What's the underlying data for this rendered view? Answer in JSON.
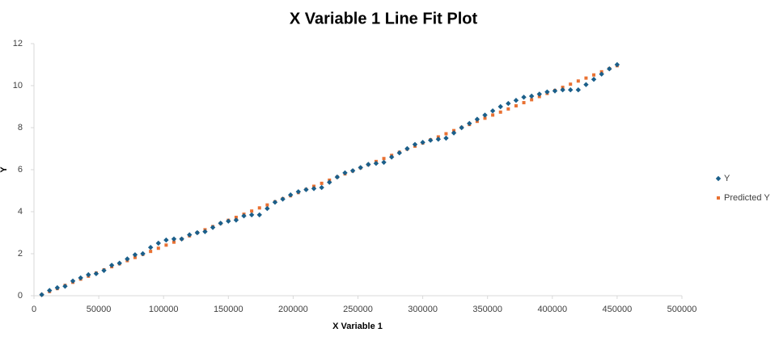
{
  "chart_data": {
    "type": "scatter",
    "title": "X Variable 1 Line Fit  Plot",
    "x_label": "X Variable 1",
    "y_label": "Y",
    "x": [
      6000,
      12000,
      18000,
      24000,
      30000,
      36000,
      42000,
      48000,
      54000,
      60000,
      66000,
      72000,
      78000,
      84000,
      90000,
      96000,
      102000,
      108000,
      114000,
      120000,
      126000,
      132000,
      138000,
      144000,
      150000,
      156000,
      162000,
      168000,
      174000,
      180000,
      186000,
      192000,
      198000,
      204000,
      210000,
      216000,
      222000,
      228000,
      234000,
      240000,
      246000,
      252000,
      258000,
      264000,
      270000,
      276000,
      282000,
      288000,
      294000,
      300000,
      306000,
      312000,
      318000,
      324000,
      330000,
      336000,
      342000,
      348000,
      354000,
      360000,
      366000,
      372000,
      378000,
      384000,
      390000,
      396000,
      402000,
      408000,
      414000,
      420000,
      426000,
      432000,
      438000,
      444000,
      450000
    ],
    "series": [
      {
        "name": "Y",
        "color": "#1b5f8a",
        "marker": "diamond",
        "values": [
          0.05,
          0.25,
          0.38,
          0.45,
          0.7,
          0.85,
          1.0,
          1.05,
          1.2,
          1.45,
          1.55,
          1.75,
          1.95,
          2.0,
          2.3,
          2.5,
          2.65,
          2.7,
          2.7,
          2.9,
          3.0,
          3.05,
          3.25,
          3.45,
          3.55,
          3.6,
          3.8,
          3.85,
          3.85,
          4.15,
          4.45,
          4.6,
          4.8,
          4.95,
          5.05,
          5.1,
          5.15,
          5.4,
          5.65,
          5.85,
          5.95,
          6.1,
          6.25,
          6.3,
          6.35,
          6.6,
          6.8,
          7.0,
          7.2,
          7.3,
          7.4,
          7.45,
          7.5,
          7.75,
          8.0,
          8.2,
          8.4,
          8.6,
          8.8,
          9.0,
          9.15,
          9.3,
          9.45,
          9.5,
          9.6,
          9.7,
          9.75,
          9.8,
          9.8,
          9.8,
          10.05,
          10.3,
          10.55,
          10.8,
          11.0
        ]
      },
      {
        "name": "Predicted Y",
        "color": "#e97132",
        "marker": "square",
        "values": [
          0.05,
          0.2,
          0.34,
          0.49,
          0.64,
          0.79,
          0.93,
          1.08,
          1.23,
          1.38,
          1.52,
          1.67,
          1.82,
          1.97,
          2.11,
          2.26,
          2.41,
          2.55,
          2.7,
          2.85,
          3.0,
          3.14,
          3.29,
          3.44,
          3.59,
          3.73,
          3.88,
          4.03,
          4.18,
          4.32,
          4.47,
          4.62,
          4.76,
          4.91,
          5.06,
          5.21,
          5.35,
          5.5,
          5.65,
          5.8,
          5.94,
          6.09,
          6.24,
          6.39,
          6.53,
          6.68,
          6.83,
          6.98,
          7.12,
          7.27,
          7.42,
          7.56,
          7.71,
          7.86,
          8.01,
          8.15,
          8.3,
          8.45,
          8.6,
          8.74,
          8.89,
          9.04,
          9.19,
          9.33,
          9.48,
          9.63,
          9.77,
          9.92,
          10.07,
          10.22,
          10.36,
          10.51,
          10.66,
          10.81,
          10.95
        ]
      }
    ],
    "xlim": [
      0,
      500000
    ],
    "xticks": [
      0,
      50000,
      100000,
      150000,
      200000,
      250000,
      300000,
      350000,
      400000,
      450000,
      500000
    ],
    "ylim": [
      0,
      12
    ],
    "yticks": [
      0,
      2,
      4,
      6,
      8,
      10,
      12
    ],
    "grid": false,
    "legend": "right"
  }
}
